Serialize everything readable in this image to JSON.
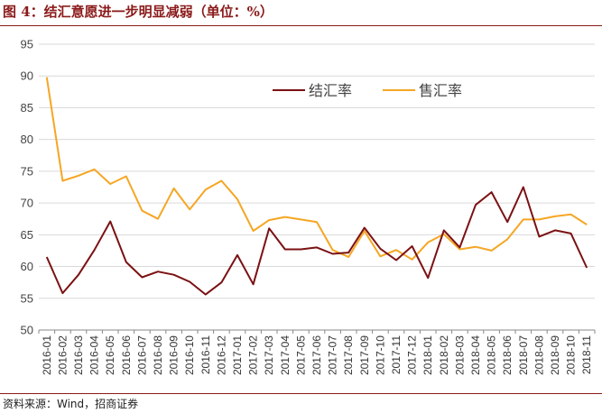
{
  "title": "图 4：结汇意愿进一步明显减弱（单位：%）",
  "source": "资料来源：Wind，招商证券",
  "colors": {
    "accent": "#8b1a1a",
    "series1": "#7b1113",
    "series2": "#f5a623",
    "grid": "#d9d9d9"
  },
  "chart_data": {
    "type": "line",
    "title": "结汇意愿进一步明显减弱（单位：%）",
    "xlabel": "",
    "ylabel": "",
    "ylim": [
      50,
      95
    ],
    "yticks": [
      50,
      55,
      60,
      65,
      70,
      75,
      80,
      85,
      90,
      95
    ],
    "grid": true,
    "legend": "top-center",
    "categories": [
      "2016-01",
      "2016-02",
      "2016-03",
      "2016-04",
      "2016-05",
      "2016-06",
      "2016-07",
      "2016-08",
      "2016-09",
      "2016-10",
      "2016-11",
      "2016-12",
      "2017-01",
      "2017-02",
      "2017-03",
      "2017-04",
      "2017-05",
      "2017-06",
      "2017-07",
      "2017-08",
      "2017-09",
      "2017-10",
      "2017-11",
      "2017-12",
      "2018-01",
      "2018-02",
      "2018-03",
      "2018-04",
      "2018-05",
      "2018-06",
      "2018-07",
      "2018-08",
      "2018-09",
      "2018-10",
      "2018-11"
    ],
    "series": [
      {
        "name": "结汇率",
        "values": [
          61.5,
          55.8,
          58.7,
          62.6,
          67.1,
          60.7,
          58.3,
          59.2,
          58.7,
          57.6,
          55.6,
          57.5,
          61.8,
          57.2,
          66.0,
          62.7,
          62.7,
          63.0,
          62.0,
          62.2,
          66.1,
          62.8,
          61.0,
          63.2,
          58.2,
          65.7,
          63.0,
          69.7,
          71.7,
          67.0,
          72.5,
          64.7,
          65.7,
          65.2,
          59.8
        ]
      },
      {
        "name": "售汇率",
        "values": [
          89.8,
          73.5,
          74.3,
          75.3,
          73.0,
          74.2,
          68.8,
          67.5,
          72.3,
          69.0,
          72.1,
          73.5,
          70.6,
          65.6,
          67.3,
          67.8,
          67.4,
          67.0,
          62.6,
          61.5,
          65.6,
          61.6,
          62.6,
          61.1,
          63.8,
          65.1,
          62.7,
          63.1,
          62.5,
          64.3,
          67.4,
          67.4,
          67.9,
          68.2,
          66.6
        ]
      }
    ]
  }
}
